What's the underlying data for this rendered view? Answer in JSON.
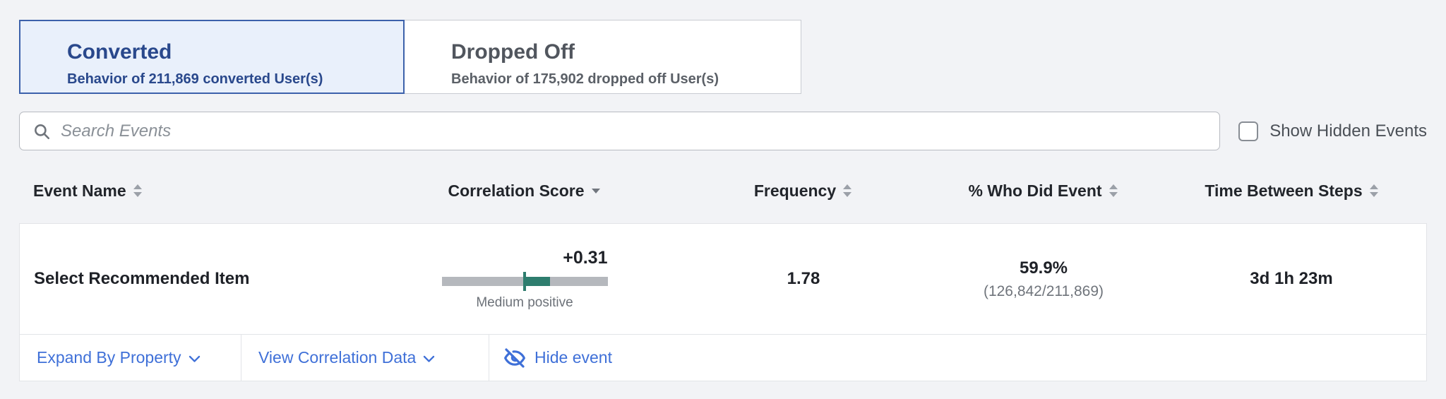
{
  "tabs": [
    {
      "title": "Converted",
      "subtitle": "Behavior of 211,869 converted User(s)",
      "selected": true
    },
    {
      "title": "Dropped Off",
      "subtitle": "Behavior of 175,902 dropped off User(s)",
      "selected": false
    }
  ],
  "search": {
    "placeholder": "Search Events"
  },
  "controls": {
    "show_hidden_label": "Show Hidden Events",
    "checkbox_checked": false
  },
  "table": {
    "columns": [
      {
        "label": "Event Name",
        "sort": "both"
      },
      {
        "label": "Correlation Score",
        "sort": "desc"
      },
      {
        "label": "Frequency",
        "sort": "both"
      },
      {
        "label": "% Who Did Event",
        "sort": "both"
      },
      {
        "label": "Time Between Steps",
        "sort": "both"
      }
    ],
    "row": {
      "event_name": "Select Recommended Item",
      "correlation": {
        "score": "+0.31",
        "value": 0.31,
        "scale_min": -1,
        "scale_max": 1,
        "label": "Medium positive"
      },
      "frequency": "1.78",
      "pct_who_did": "59.9%",
      "pct_detail": "(126,842/211,869)",
      "time_between": "3d 1h 23m"
    },
    "actions": {
      "expand_label": "Expand By Property",
      "view_label": "View Correlation Data",
      "hide_label": "Hide event"
    }
  },
  "colors": {
    "page_bg": "#f2f3f6",
    "selected_tab_bg": "#e9f0fb",
    "selected_tab_border": "#3c61ab",
    "selected_tab_text": "#29488c",
    "link_blue": "#3f70d8",
    "correlation_teal": "#2e7d6e",
    "bar_track_gray": "#b5b8bd"
  }
}
